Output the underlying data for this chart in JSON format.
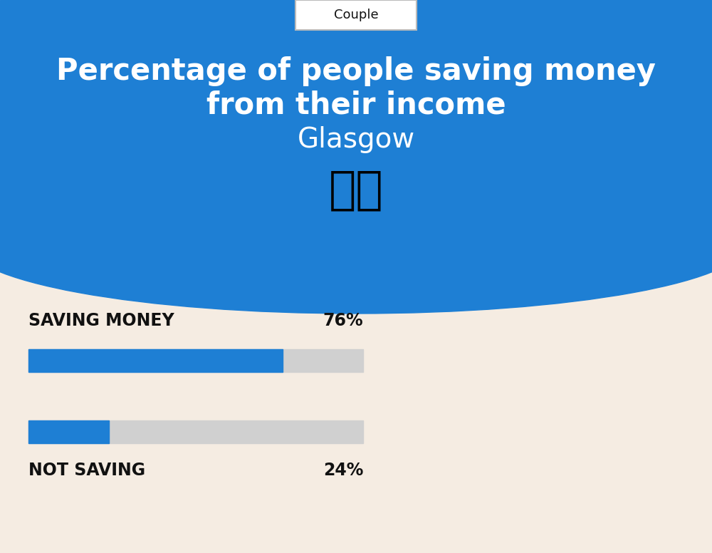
{
  "title_line1": "Percentage of people saving money",
  "title_line2": "from their income",
  "city": "Glasgow",
  "tab_label": "Couple",
  "bar1_label": "SAVING MONEY",
  "bar1_value": 76,
  "bar1_pct": "76%",
  "bar2_label": "NOT SAVING",
  "bar2_value": 24,
  "bar2_pct": "24%",
  "bar_blue": "#1e7fd4",
  "bar_gray": "#d0d0d0",
  "bg_top": "#1e7fd4",
  "bg_bottom": "#f5ece2",
  "title_color": "#ffffff",
  "city_color": "#ffffff",
  "label_color": "#111111",
  "tab_bg": "#ffffff",
  "tab_color": "#111111",
  "flag_emoji": "🇬🇧",
  "fig_w": 10.0,
  "fig_h": 7.76
}
